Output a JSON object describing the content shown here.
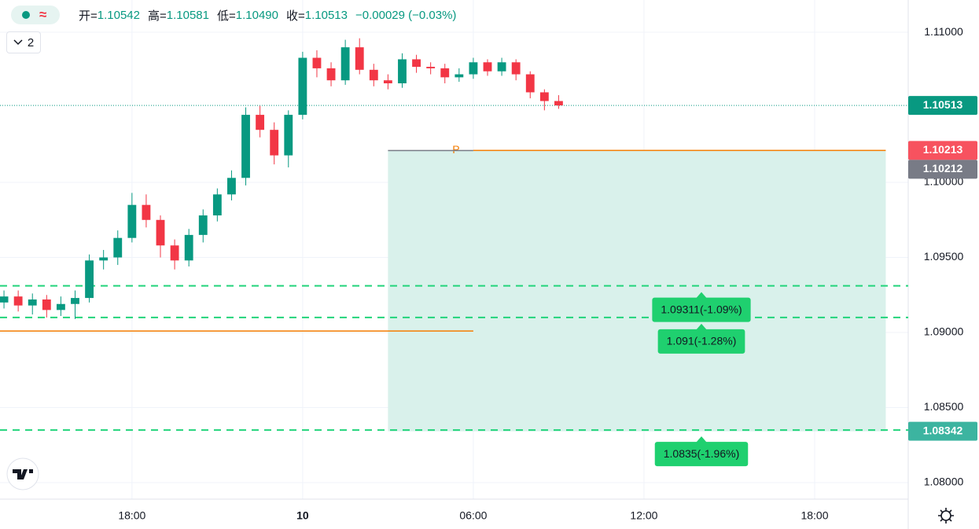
{
  "header": {
    "open_label": "开=",
    "open": "1.10542",
    "high_label": "高=",
    "high": "1.10581",
    "low_label": "低=",
    "low": "1.10490",
    "close_label": "收=",
    "close": "1.10513",
    "change": "−0.00029 (−0.03%)"
  },
  "indicators_button": "2",
  "chart_data": {
    "type": "candlestick",
    "x": [
      13.5,
      14,
      14.5,
      15,
      15.5,
      16,
      16.5,
      17,
      17.5,
      18,
      18.5,
      19,
      19.5,
      20,
      20.5,
      21,
      21.5,
      22,
      22.5,
      23,
      23.5,
      24,
      24.5,
      25,
      25.5,
      26,
      26.5,
      27,
      27.5,
      28,
      28.5,
      29,
      29.5,
      30,
      30.5,
      31,
      31.5,
      32,
      32.5,
      33
    ],
    "open": [
      1.092,
      1.0924,
      1.0918,
      1.0922,
      1.0915,
      1.0919,
      1.0923,
      1.0948,
      1.095,
      1.0963,
      1.0985,
      1.0975,
      1.0958,
      1.0948,
      1.0965,
      1.0978,
      1.0992,
      1.1003,
      1.1045,
      1.1035,
      1.1018,
      1.1045,
      1.1083,
      1.1076,
      1.1068,
      1.109,
      1.1075,
      1.1068,
      1.1066,
      1.1082,
      1.1077,
      1.1076,
      1.107,
      1.1072,
      1.108,
      1.1074,
      1.108,
      1.1072,
      1.106,
      1.10542
    ],
    "high": [
      1.0928,
      1.0928,
      1.0926,
      1.0925,
      1.0924,
      1.0928,
      1.0952,
      1.0955,
      1.0968,
      1.0993,
      1.0992,
      1.0978,
      1.0962,
      1.0969,
      1.0982,
      1.0996,
      1.1008,
      1.105,
      1.1051,
      1.104,
      1.1048,
      1.1087,
      1.1088,
      1.108,
      1.1095,
      1.1096,
      1.1079,
      1.1072,
      1.1086,
      1.1085,
      1.108,
      1.1079,
      1.1076,
      1.1083,
      1.1082,
      1.1083,
      1.1082,
      1.1074,
      1.1062,
      1.10581
    ],
    "low": [
      1.0916,
      1.0914,
      1.0912,
      1.091,
      1.0911,
      1.0909,
      1.092,
      1.0942,
      1.0945,
      1.096,
      1.097,
      1.095,
      1.0942,
      1.0944,
      1.096,
      1.0974,
      1.0988,
      1.0998,
      1.103,
      1.1012,
      1.101,
      1.1042,
      1.107,
      1.1064,
      1.1065,
      1.1072,
      1.1064,
      1.1062,
      1.1063,
      1.1073,
      1.1072,
      1.1066,
      1.1067,
      1.1069,
      1.1071,
      1.1071,
      1.1068,
      1.1056,
      1.1048,
      1.1049
    ],
    "close": [
      1.0924,
      1.0918,
      1.0922,
      1.0915,
      1.0919,
      1.0923,
      1.0948,
      1.095,
      1.0963,
      1.0985,
      1.0975,
      1.0958,
      1.0948,
      1.0965,
      1.0978,
      1.0992,
      1.1003,
      1.1045,
      1.1035,
      1.1018,
      1.1045,
      1.1083,
      1.1076,
      1.1068,
      1.109,
      1.1075,
      1.1068,
      1.1066,
      1.1082,
      1.1077,
      1.1076,
      1.107,
      1.1072,
      1.108,
      1.1074,
      1.108,
      1.1072,
      1.106,
      1.10542,
      1.10513
    ],
    "up_color": "#089981",
    "down_color": "#f23645",
    "xlim": [
      13.36,
      45.29
    ],
    "xticks": [
      {
        "value": 18,
        "label": "18:00"
      },
      {
        "value": 24,
        "label": "10"
      },
      {
        "value": 30,
        "label": "06:00"
      },
      {
        "value": 36,
        "label": "12:00"
      },
      {
        "value": 42,
        "label": "18:00"
      }
    ],
    "ylim": [
      1.0789,
      1.11215
    ],
    "yticks": [
      {
        "value": 1.08,
        "label": "1.08000"
      },
      {
        "value": 1.085,
        "label": "1.08500"
      },
      {
        "value": 1.09,
        "label": "1.09000"
      },
      {
        "value": 1.095,
        "label": "1.09500"
      },
      {
        "value": 1.1,
        "label": "1.10000"
      },
      {
        "value": 1.11,
        "label": "1.11000"
      }
    ],
    "grid": true,
    "price_tags": [
      {
        "value": 1.10513,
        "label": "1.10513",
        "color": "#089981"
      },
      {
        "value": 1.10213,
        "label": "1.10213",
        "color": "#f7525f"
      },
      {
        "value": 1.10212,
        "label": "1.10212",
        "color": "#787b86"
      },
      {
        "value": 1.08342,
        "label": "1.08342",
        "color": "#3cb4a0"
      }
    ],
    "levels": [
      {
        "value": 1.09311,
        "label": "1.09311(-1.09%)",
        "color": "#22d47b"
      },
      {
        "value": 1.091,
        "label": "1.091(-1.28%)",
        "color": "#22d47b"
      },
      {
        "value": 1.0835,
        "label": "1.0835(-1.96%)",
        "color": "#22d47b"
      }
    ],
    "zone": {
      "x": [
        27.0,
        44.5
      ],
      "y": [
        1.10212,
        1.08342
      ],
      "color": "#d9f1eb"
    },
    "lines": [
      {
        "value": 1.0901,
        "x": [
          13.36,
          30.0
        ],
        "color": "#f57c00"
      },
      {
        "value": 1.10213,
        "x": [
          30.0,
          44.5
        ],
        "color": "#f57c00",
        "label": "P"
      },
      {
        "value": 1.10212,
        "x": [
          27.0,
          30.0
        ],
        "color": "#787b86"
      }
    ]
  }
}
